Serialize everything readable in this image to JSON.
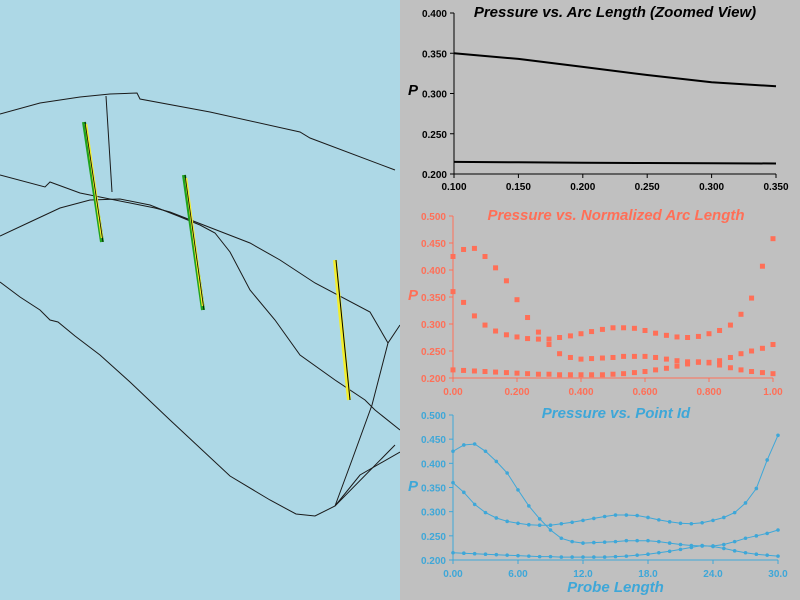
{
  "colors": {
    "view_background": "#add8e6",
    "plot_background": "#c0c0c0",
    "chart1_series": "#000000",
    "chart2_series": "#ff6f57",
    "chart3_series": "#3ea7d8",
    "probe_green": "#1fa31f",
    "probe_yellow": "#f3ee2c"
  },
  "chart_data": [
    {
      "type": "line",
      "title": "Pressure vs. Arc Length (Zoomed View)",
      "ylabel": "P",
      "xlabel": "",
      "xlim": [
        0.1,
        0.35
      ],
      "ylim": [
        0.2,
        0.4
      ],
      "x_ticks": [
        "0.100",
        "0.150",
        "0.200",
        "0.250",
        "0.300",
        "0.350"
      ],
      "y_ticks": [
        "0.200",
        "0.250",
        "0.300",
        "0.350",
        "0.400"
      ],
      "grid": false,
      "series": [
        {
          "x": [
            0.1,
            0.15,
            0.2,
            0.25,
            0.3,
            0.35
          ],
          "y": [
            0.35,
            0.343,
            0.333,
            0.323,
            0.314,
            0.309
          ]
        },
        {
          "x": [
            0.1,
            0.15,
            0.2,
            0.25,
            0.3,
            0.35
          ],
          "y": [
            0.215,
            0.2145,
            0.214,
            0.2137,
            0.2134,
            0.213
          ]
        }
      ]
    },
    {
      "type": "scatter",
      "title": "Pressure vs. Normalized Arc Length",
      "ylabel": "P",
      "xlabel": "",
      "xlim": [
        0,
        1
      ],
      "ylim": [
        0.2,
        0.5
      ],
      "x_ticks": [
        "0.00",
        "0.200",
        "0.400",
        "0.600",
        "0.800",
        "1.00"
      ],
      "y_ticks": [
        "0.200",
        "0.250",
        "0.300",
        "0.350",
        "0.400",
        "0.450",
        "0.500"
      ],
      "grid": false,
      "series": [
        {
          "x": [
            0.0,
            0.033,
            0.067,
            0.1,
            0.133,
            0.167,
            0.2,
            0.233,
            0.267,
            0.3,
            0.333,
            0.367,
            0.4,
            0.433,
            0.467,
            0.5,
            0.533,
            0.567,
            0.6,
            0.633,
            0.667,
            0.7,
            0.733,
            0.767,
            0.8,
            0.833,
            0.867,
            0.9,
            0.933,
            0.967,
            1.0
          ],
          "y": [
            0.425,
            0.438,
            0.44,
            0.425,
            0.404,
            0.38,
            0.345,
            0.312,
            0.285,
            0.262,
            0.245,
            0.238,
            0.235,
            0.236,
            0.237,
            0.238,
            0.24,
            0.24,
            0.24,
            0.238,
            0.235,
            0.232,
            0.23,
            0.229,
            0.229,
            0.232,
            0.238,
            0.245,
            0.25,
            0.255,
            0.262
          ]
        },
        {
          "x": [
            0.0,
            0.033,
            0.067,
            0.1,
            0.133,
            0.167,
            0.2,
            0.233,
            0.267,
            0.3,
            0.333,
            0.367,
            0.4,
            0.433,
            0.467,
            0.5,
            0.533,
            0.567,
            0.6,
            0.633,
            0.667,
            0.7,
            0.733,
            0.767,
            0.8,
            0.833,
            0.867,
            0.9,
            0.933,
            0.967,
            1.0
          ],
          "y": [
            0.36,
            0.34,
            0.315,
            0.298,
            0.287,
            0.28,
            0.276,
            0.273,
            0.272,
            0.272,
            0.275,
            0.278,
            0.282,
            0.286,
            0.29,
            0.293,
            0.293,
            0.292,
            0.288,
            0.283,
            0.279,
            0.276,
            0.275,
            0.277,
            0.282,
            0.288,
            0.298,
            0.318,
            0.348,
            0.407,
            0.458
          ]
        },
        {
          "x": [
            0.0,
            0.033,
            0.067,
            0.1,
            0.133,
            0.167,
            0.2,
            0.233,
            0.267,
            0.3,
            0.333,
            0.367,
            0.4,
            0.433,
            0.467,
            0.5,
            0.533,
            0.567,
            0.6,
            0.633,
            0.667,
            0.7,
            0.733,
            0.767,
            0.8,
            0.833,
            0.867,
            0.9,
            0.933,
            0.967,
            1.0
          ],
          "y": [
            0.215,
            0.214,
            0.213,
            0.212,
            0.211,
            0.21,
            0.209,
            0.208,
            0.207,
            0.207,
            0.206,
            0.206,
            0.206,
            0.206,
            0.206,
            0.207,
            0.208,
            0.21,
            0.212,
            0.215,
            0.218,
            0.222,
            0.226,
            0.23,
            0.228,
            0.224,
            0.219,
            0.215,
            0.212,
            0.21,
            0.208
          ]
        }
      ]
    },
    {
      "type": "line",
      "title": "Pressure vs. Point Id",
      "ylabel": "P",
      "xlabel": "Probe Length",
      "xlim": [
        0,
        30
      ],
      "ylim": [
        0.2,
        0.5
      ],
      "x_ticks": [
        "0.00",
        "6.00",
        "12.0",
        "18.0",
        "24.0",
        "30.0"
      ],
      "y_ticks": [
        "0.200",
        "0.250",
        "0.300",
        "0.350",
        "0.400",
        "0.450",
        "0.500"
      ],
      "grid": false,
      "series": [
        {
          "x": [
            0,
            1,
            2,
            3,
            4,
            5,
            6,
            7,
            8,
            9,
            10,
            11,
            12,
            13,
            14,
            15,
            16,
            17,
            18,
            19,
            20,
            21,
            22,
            23,
            24,
            25,
            26,
            27,
            28,
            29,
            30
          ],
          "y": [
            0.425,
            0.438,
            0.44,
            0.425,
            0.404,
            0.38,
            0.345,
            0.312,
            0.285,
            0.262,
            0.245,
            0.238,
            0.235,
            0.236,
            0.237,
            0.238,
            0.24,
            0.24,
            0.24,
            0.238,
            0.235,
            0.232,
            0.23,
            0.229,
            0.229,
            0.232,
            0.238,
            0.245,
            0.25,
            0.255,
            0.262
          ]
        },
        {
          "x": [
            0,
            1,
            2,
            3,
            4,
            5,
            6,
            7,
            8,
            9,
            10,
            11,
            12,
            13,
            14,
            15,
            16,
            17,
            18,
            19,
            20,
            21,
            22,
            23,
            24,
            25,
            26,
            27,
            28,
            29,
            30
          ],
          "y": [
            0.36,
            0.34,
            0.315,
            0.298,
            0.287,
            0.28,
            0.276,
            0.273,
            0.272,
            0.272,
            0.275,
            0.278,
            0.282,
            0.286,
            0.29,
            0.293,
            0.293,
            0.292,
            0.288,
            0.283,
            0.279,
            0.276,
            0.275,
            0.277,
            0.282,
            0.288,
            0.298,
            0.318,
            0.348,
            0.407,
            0.458
          ]
        },
        {
          "x": [
            0,
            1,
            2,
            3,
            4,
            5,
            6,
            7,
            8,
            9,
            10,
            11,
            12,
            13,
            14,
            15,
            16,
            17,
            18,
            19,
            20,
            21,
            22,
            23,
            24,
            25,
            26,
            27,
            28,
            29,
            30
          ],
          "y": [
            0.215,
            0.214,
            0.213,
            0.212,
            0.211,
            0.21,
            0.209,
            0.208,
            0.207,
            0.207,
            0.206,
            0.206,
            0.206,
            0.206,
            0.206,
            0.207,
            0.208,
            0.21,
            0.212,
            0.215,
            0.218,
            0.222,
            0.226,
            0.23,
            0.228,
            0.224,
            0.219,
            0.215,
            0.212,
            0.21,
            0.208
          ]
        }
      ]
    }
  ]
}
